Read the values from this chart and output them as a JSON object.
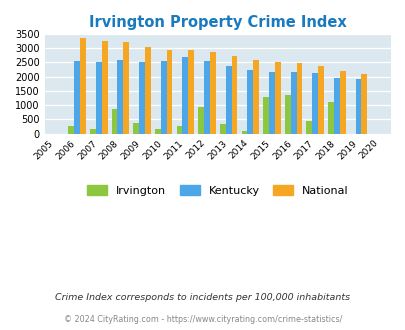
{
  "title": "Irvington Property Crime Index",
  "all_years": [
    2005,
    2006,
    2007,
    2008,
    2009,
    2010,
    2011,
    2012,
    2013,
    2014,
    2015,
    2016,
    2017,
    2018,
    2019,
    2020
  ],
  "plot_years": [
    2006,
    2007,
    2008,
    2009,
    2010,
    2011,
    2012,
    2013,
    2014,
    2015,
    2016,
    2017,
    2018,
    2019
  ],
  "irvington": [
    250,
    150,
    875,
    375,
    175,
    275,
    925,
    350,
    100,
    1275,
    1350,
    450,
    1100,
    0
  ],
  "kentucky": [
    2550,
    2530,
    2590,
    2530,
    2550,
    2700,
    2550,
    2375,
    2250,
    2175,
    2175,
    2125,
    1950,
    1900
  ],
  "national": [
    3350,
    3260,
    3220,
    3050,
    2950,
    2920,
    2875,
    2720,
    2600,
    2500,
    2475,
    2375,
    2200,
    2100
  ],
  "irvington_color": "#8dc63f",
  "kentucky_color": "#4da6e8",
  "national_color": "#f5a623",
  "bg_color": "#dce8f0",
  "ylim": [
    0,
    3500
  ],
  "yticks": [
    0,
    500,
    1000,
    1500,
    2000,
    2500,
    3000,
    3500
  ],
  "subtitle": "Crime Index corresponds to incidents per 100,000 inhabitants",
  "footer": "© 2024 CityRating.com - https://www.cityrating.com/crime-statistics/",
  "title_color": "#1a7abf",
  "subtitle_color": "#333333",
  "footer_color": "#888888",
  "legend_labels": [
    "Irvington",
    "Kentucky",
    "National"
  ]
}
